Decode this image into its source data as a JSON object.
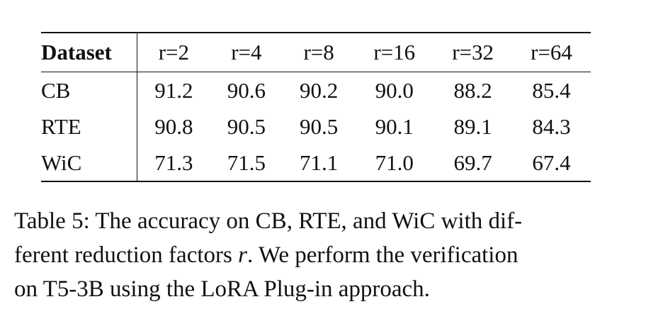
{
  "table": {
    "header": [
      "Dataset",
      "r=2",
      "r=4",
      "r=8",
      "r=16",
      "r=32",
      "r=64"
    ],
    "rows": [
      {
        "dataset": "CB",
        "values": [
          "91.2",
          "90.6",
          "90.2",
          "90.0",
          "88.2",
          "85.4"
        ]
      },
      {
        "dataset": "RTE",
        "values": [
          "90.8",
          "90.5",
          "90.5",
          "90.1",
          "89.1",
          "84.3"
        ]
      },
      {
        "dataset": "WiC",
        "values": [
          "71.3",
          "71.5",
          "71.1",
          "71.0",
          "69.7",
          "67.4"
        ]
      }
    ]
  },
  "caption": {
    "line1": "Table 5: The accuracy on CB, RTE, and WiC with dif-",
    "line2_a": "ferent reduction factors ",
    "line2_r": "r",
    "line2_b": ". We perform the verification",
    "line3": "on T5-3B using the LoRA Plug-in approach."
  }
}
